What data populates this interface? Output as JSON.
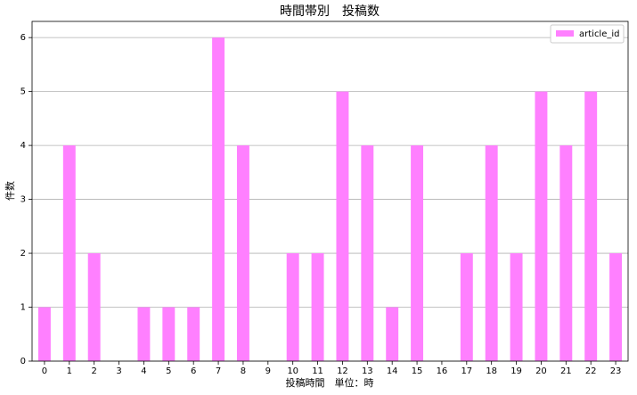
{
  "chart_data": {
    "type": "bar",
    "title": "時間帯別　投稿数",
    "x_label": "投稿時間　単位：時",
    "y_label": "件数",
    "categories": [
      "0",
      "1",
      "2",
      "3",
      "4",
      "5",
      "6",
      "7",
      "8",
      "9",
      "10",
      "11",
      "12",
      "13",
      "14",
      "15",
      "16",
      "17",
      "18",
      "19",
      "20",
      "21",
      "22",
      "23"
    ],
    "series": [
      {
        "name": "article_id",
        "color": "#ff80ff",
        "values": [
          1,
          4,
          2,
          0,
          1,
          1,
          1,
          6,
          4,
          0,
          2,
          2,
          5,
          4,
          1,
          4,
          0,
          2,
          4,
          2,
          5,
          4,
          5,
          2
        ]
      }
    ],
    "ylim": [
      0,
      6.3
    ],
    "yticks": [
      0,
      1,
      2,
      3,
      4,
      5,
      6
    ],
    "grid": true,
    "legend": "upper right"
  }
}
